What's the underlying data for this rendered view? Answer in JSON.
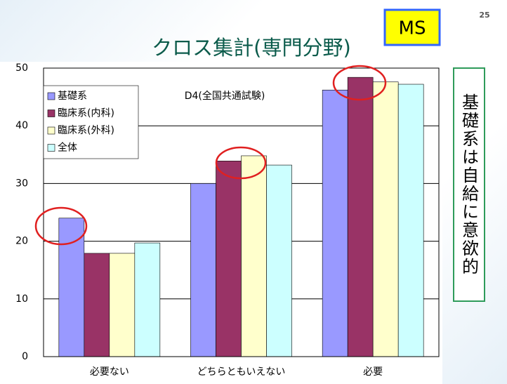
{
  "chart_data": {
    "type": "bar",
    "page_number": "25",
    "title": "クロス集計(専門分野)",
    "badge": "MS",
    "subtitle": "D4(全国共通試験)",
    "note": "基礎系は自給に意欲的",
    "categories": [
      "必要ない",
      "どちらともいえない",
      "必要"
    ],
    "series": [
      {
        "name": "基礎系",
        "color": "#9999ff",
        "values": [
          24.0,
          30.0,
          46.2
        ]
      },
      {
        "name": "臨床系(内科)",
        "color": "#993366",
        "values": [
          17.9,
          33.9,
          48.4
        ]
      },
      {
        "name": "臨床系(外科)",
        "color": "#ffffcc",
        "values": [
          17.9,
          34.8,
          47.6
        ]
      },
      {
        "name": "全体",
        "color": "#ccffff",
        "values": [
          19.7,
          33.2,
          47.2
        ]
      }
    ],
    "ylim": [
      0,
      50
    ],
    "yticks": [
      0,
      10,
      20,
      30,
      40,
      50
    ],
    "grid": true,
    "legend": "top-left"
  }
}
